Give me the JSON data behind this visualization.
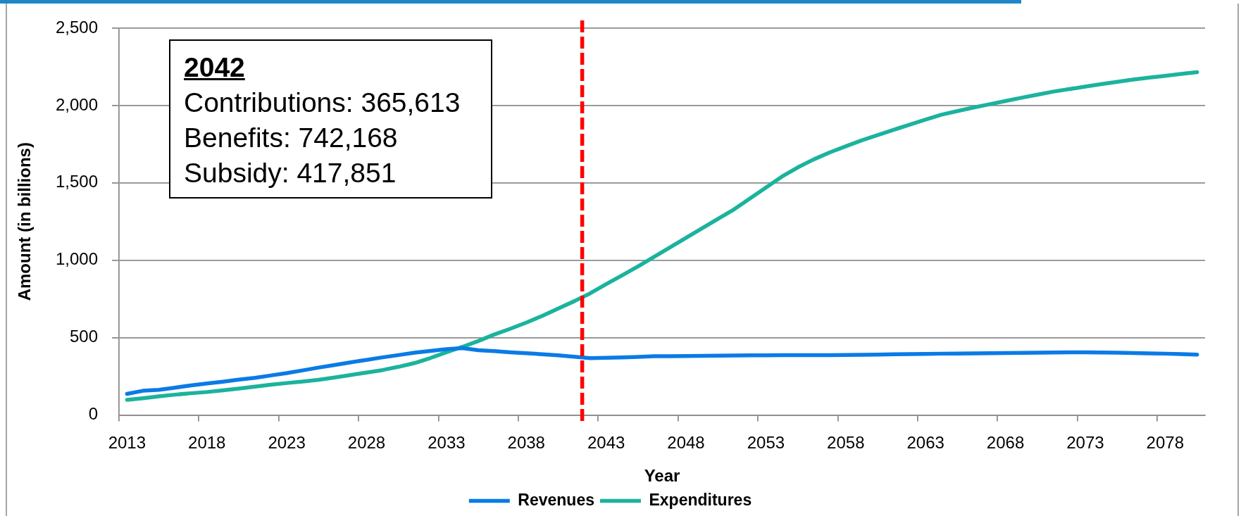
{
  "chart_data": {
    "type": "line",
    "xlabel": "Year",
    "ylabel": "Amount (in billions)",
    "xlim": [
      2012.5,
      2080.5
    ],
    "xticks": [
      {
        "value": 2012.5,
        "label": null
      },
      2013,
      {
        "value": 2017.5,
        "label": null
      },
      2018,
      {
        "value": 2022.5,
        "label": null
      },
      2023,
      {
        "value": 2027.5,
        "label": null
      },
      2028,
      {
        "value": 2032.5,
        "label": null
      },
      2033,
      {
        "value": 2037.5,
        "label": null
      },
      2038,
      {
        "value": 2042.5,
        "label": null
      },
      2043,
      {
        "value": 2047.5,
        "label": null
      },
      2048,
      {
        "value": 2052.5,
        "label": null
      },
      2053,
      {
        "value": 2057.5,
        "label": null
      },
      2058,
      {
        "value": 2062.5,
        "label": null
      },
      2063,
      {
        "value": 2067.5,
        "label": null
      },
      2068,
      {
        "value": 2072.5,
        "label": null
      },
      2073,
      {
        "value": 2077.5,
        "label": null
      },
      2078
    ],
    "ylim": [
      0,
      2500
    ],
    "yticks": [
      0,
      500,
      {
        "value": 1000,
        "label": "1,000"
      },
      {
        "value": 1500,
        "label": "1,500"
      },
      {
        "value": 2000,
        "label": "2,000"
      },
      {
        "value": 2500,
        "label": "2,500"
      }
    ],
    "grid": "y",
    "legend": "bottom",
    "marker": "none",
    "line_style": "solid",
    "x": [
      2013,
      2014,
      2015,
      2016,
      2017,
      2018,
      2019,
      2020,
      2021,
      2022,
      2023,
      2024,
      2025,
      2026,
      2027,
      2028,
      2029,
      2030,
      2031,
      2032,
      2033,
      2034,
      2035,
      2036,
      2037,
      2038,
      2039,
      2040,
      2041,
      2042,
      2043,
      2044,
      2045,
      2046,
      2047,
      2048,
      2049,
      2050,
      2051,
      2052,
      2053,
      2054,
      2055,
      2056,
      2057,
      2058,
      2059,
      2060,
      2061,
      2062,
      2063,
      2064,
      2065,
      2066,
      2067,
      2068,
      2069,
      2070,
      2071,
      2072,
      2073,
      2074,
      2075,
      2076,
      2077,
      2078,
      2079,
      2080
    ],
    "series": [
      {
        "name": "Revenues",
        "color": "#0a7be6",
        "values": [
          136,
          156,
          162,
          176,
          191,
          203,
          215,
          228,
          240,
          255,
          270,
          288,
          306,
          323,
          340,
          356,
          372,
          387,
          402,
          414,
          425,
          432,
          418,
          412,
          405,
          399,
          392,
          385,
          376,
          367,
          369,
          372,
          375,
          379,
          380,
          381,
          382,
          383,
          384,
          385,
          385,
          386,
          386,
          386,
          386,
          387,
          389,
          390,
          392,
          393,
          394,
          396,
          397,
          398,
          399,
          400,
          401,
          402,
          403,
          404,
          404,
          403,
          402,
          400,
          398,
          396,
          393,
          390
        ]
      },
      {
        "name": "Expenditures",
        "color": "#1bb39d",
        "values": [
          97,
          108,
          120,
          131,
          140,
          148,
          159,
          170,
          183,
          195,
          206,
          216,
          227,
          242,
          258,
          274,
          290,
          311,
          335,
          368,
          405,
          440,
          478,
          520,
          557,
          597,
          640,
          688,
          735,
          786,
          845,
          902,
          960,
          1022,
          1083,
          1145,
          1206,
          1267,
          1328,
          1399,
          1469,
          1540,
          1600,
          1652,
          1697,
          1736,
          1775,
          1809,
          1843,
          1876,
          1909,
          1941,
          1964,
          1987,
          2008,
          2029,
          2050,
          2070,
          2090,
          2106,
          2122,
          2138,
          2153,
          2168,
          2180,
          2192,
          2204,
          2216
        ]
      }
    ],
    "ref_lines": [
      {
        "axis": "x",
        "value": 2041.5,
        "color": "#ff0000",
        "line_style": "dashed"
      }
    ],
    "annotations": [
      "2042",
      "Contributions: 365,613",
      "Benefits: 742,168",
      "Subsidy: 417,851"
    ]
  }
}
